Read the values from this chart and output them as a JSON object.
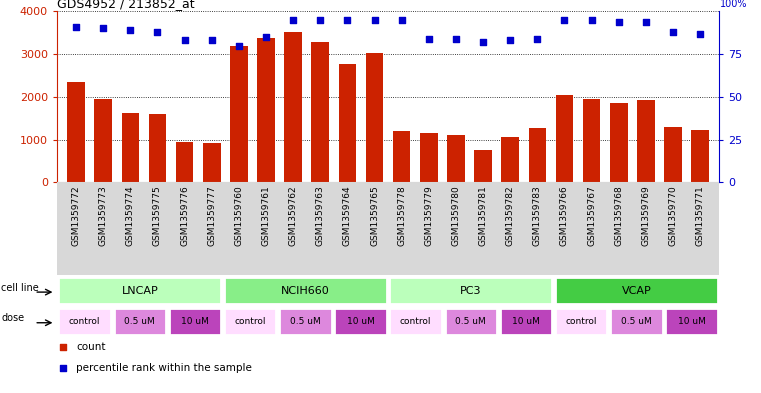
{
  "title": "GDS4952 / 213852_at",
  "samples": [
    "GSM1359772",
    "GSM1359773",
    "GSM1359774",
    "GSM1359775",
    "GSM1359776",
    "GSM1359777",
    "GSM1359760",
    "GSM1359761",
    "GSM1359762",
    "GSM1359763",
    "GSM1359764",
    "GSM1359765",
    "GSM1359778",
    "GSM1359779",
    "GSM1359780",
    "GSM1359781",
    "GSM1359782",
    "GSM1359783",
    "GSM1359766",
    "GSM1359767",
    "GSM1359768",
    "GSM1359769",
    "GSM1359770",
    "GSM1359771"
  ],
  "counts": [
    2350,
    1950,
    1620,
    1590,
    950,
    930,
    3200,
    3380,
    3520,
    3280,
    2780,
    3020,
    1200,
    1160,
    1100,
    750,
    1060,
    1270,
    2050,
    1950,
    1860,
    1920,
    1300,
    1230
  ],
  "percentile_ranks": [
    91,
    90,
    89,
    88,
    83,
    83,
    80,
    85,
    95,
    95,
    95,
    95,
    95,
    84,
    84,
    82,
    83,
    84,
    95,
    95,
    94,
    94,
    88,
    87
  ],
  "bar_color": "#cc2200",
  "dot_color": "#0000cc",
  "ylim_left": [
    0,
    4000
  ],
  "ylim_right": [
    0,
    100
  ],
  "yticks_left": [
    0,
    1000,
    2000,
    3000,
    4000
  ],
  "yticks_right": [
    0,
    25,
    50,
    75,
    100
  ],
  "cell_lines": [
    {
      "name": "LNCAP",
      "start": 0,
      "end": 6,
      "color": "#bbffbb"
    },
    {
      "name": "NCIH660",
      "start": 6,
      "end": 12,
      "color": "#88ee88"
    },
    {
      "name": "PC3",
      "start": 12,
      "end": 18,
      "color": "#bbffbb"
    },
    {
      "name": "VCAP",
      "start": 18,
      "end": 24,
      "color": "#44cc44"
    }
  ],
  "dose_per_sample": [
    "control",
    "control",
    "0.5 uM",
    "0.5 uM",
    "10 uM",
    "10 uM",
    "control",
    "control",
    "0.5 uM",
    "0.5 uM",
    "10 uM",
    "10 uM",
    "control",
    "control",
    "0.5 uM",
    "0.5 uM",
    "10 uM",
    "10 uM",
    "control",
    "control",
    "0.5 uM",
    "0.5 uM",
    "10 uM",
    "10 uM"
  ],
  "dose_colors": {
    "control": "#ffddff",
    "0.5 uM": "#dd88dd",
    "10 uM": "#bb44bb"
  },
  "dose_groups": [
    {
      "label": "control",
      "start": 0,
      "end": 2
    },
    {
      "label": "0.5 uM",
      "start": 2,
      "end": 4
    },
    {
      "label": "10 uM",
      "start": 4,
      "end": 6
    },
    {
      "label": "control",
      "start": 6,
      "end": 8
    },
    {
      "label": "0.5 uM",
      "start": 8,
      "end": 10
    },
    {
      "label": "10 uM",
      "start": 10,
      "end": 12
    },
    {
      "label": "control",
      "start": 12,
      "end": 14
    },
    {
      "label": "0.5 uM",
      "start": 14,
      "end": 16
    },
    {
      "label": "10 uM",
      "start": 16,
      "end": 18
    },
    {
      "label": "control",
      "start": 18,
      "end": 20
    },
    {
      "label": "0.5 uM",
      "start": 20,
      "end": 22
    },
    {
      "label": "10 uM",
      "start": 22,
      "end": 24
    }
  ],
  "xtick_bg_color": "#d8d8d8",
  "legend_count_color": "#cc2200",
  "legend_dot_color": "#0000cc"
}
